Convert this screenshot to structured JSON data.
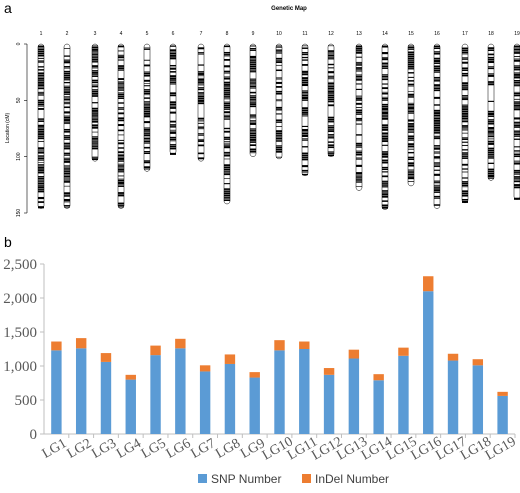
{
  "panels": {
    "a": "a",
    "b": "b"
  },
  "chart_data": [
    {
      "type": "genetic-map",
      "title": "Genetic Map",
      "ylabel": "Location (cM)",
      "yticks": [
        0,
        50,
        100,
        150
      ],
      "ylim": [
        0,
        150
      ],
      "categories": [
        "1",
        "2",
        "3",
        "4",
        "5",
        "6",
        "7",
        "8",
        "9",
        "10",
        "11",
        "12",
        "13",
        "14",
        "15",
        "16",
        "17",
        "18",
        "19"
      ],
      "lengths_cm": [
        146,
        146,
        104,
        146,
        113,
        98,
        104,
        142,
        100,
        102,
        117,
        100,
        130,
        147,
        126,
        146,
        141,
        121,
        138
      ]
    },
    {
      "type": "bar",
      "stacked": true,
      "categories": [
        "LG1",
        "LG2",
        "LG3",
        "LG4",
        "LG5",
        "LG6",
        "LG7",
        "LG8",
        "LG9",
        "LG10",
        "LG11",
        "LG12",
        "LG13",
        "LG14",
        "LG15",
        "LG16",
        "LG17",
        "LG18",
        "LG19"
      ],
      "series": [
        {
          "name": "SNP Number",
          "color": "#5b9bd5",
          "values": [
            1230,
            1260,
            1060,
            800,
            1160,
            1260,
            920,
            1030,
            830,
            1230,
            1250,
            870,
            1110,
            790,
            1150,
            2100,
            1080,
            1010,
            560
          ]
        },
        {
          "name": "InDel Number",
          "color": "#ed7d31",
          "values": [
            130,
            150,
            130,
            70,
            140,
            140,
            90,
            140,
            80,
            150,
            110,
            100,
            130,
            90,
            120,
            220,
            100,
            90,
            60
          ]
        }
      ],
      "ylim": [
        0,
        2500
      ],
      "yticks": [
        "0",
        "500",
        "1,000",
        "1,500",
        "2,000",
        "2,500"
      ],
      "legend_position": "bottom"
    }
  ]
}
